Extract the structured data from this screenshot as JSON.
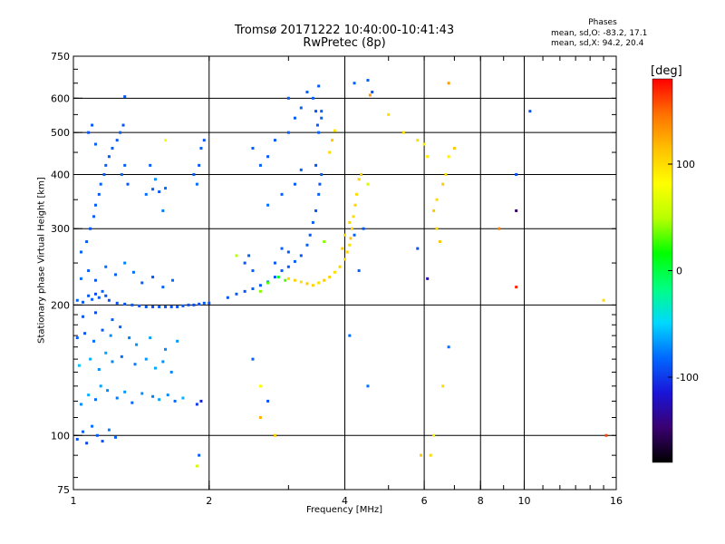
{
  "chart_data": {
    "type": "scatter",
    "title": "Tromsø 20171222 10:40:00-10:41:43",
    "subtitle": "RwPretec (8p)",
    "xlabel": "Frequency [MHz]",
    "ylabel": "Stationary phase Virtual Height [km]",
    "x_scale": "log",
    "y_scale": "log",
    "xlim": [
      1,
      16
    ],
    "ylim": [
      75,
      750
    ],
    "x_ticks": [
      1,
      2,
      4,
      6,
      8,
      10,
      16
    ],
    "y_ticks": [
      75,
      100,
      200,
      300,
      400,
      500,
      600,
      750
    ],
    "x_grid": [
      2,
      4,
      6,
      8,
      10
    ],
    "y_grid": [
      100,
      200,
      300,
      400,
      500,
      600
    ],
    "legend": {
      "title": "Phases",
      "lines": [
        "mean, sd,O: -83.2, 17.1",
        "mean, sd,X: 94.2, 20.4"
      ]
    },
    "colorbar": {
      "label": "[deg]",
      "range": [
        -180,
        180
      ],
      "ticks": [
        -100,
        0,
        100
      ],
      "colors": [
        "#000000",
        "#3a0070",
        "#1a14d8",
        "#0068ff",
        "#00d8ff",
        "#00ff80",
        "#00ff00",
        "#b8ff00",
        "#ffff00",
        "#ffc000",
        "#ff7000",
        "#ff0000"
      ]
    },
    "series": [
      {
        "points": [
          [
            1.02,
            98,
            -90
          ],
          [
            1.05,
            102,
            -85
          ],
          [
            1.07,
            96,
            -95
          ],
          [
            1.1,
            105,
            -80
          ],
          [
            1.13,
            100,
            -88
          ],
          [
            1.16,
            97,
            -92
          ],
          [
            1.2,
            103,
            -75
          ],
          [
            1.24,
            99,
            -85
          ],
          [
            1.04,
            118,
            -70
          ],
          [
            1.08,
            124,
            -60
          ],
          [
            1.12,
            121,
            -80
          ],
          [
            1.15,
            130,
            -65
          ],
          [
            1.19,
            127,
            -72
          ],
          [
            1.25,
            122,
            -78
          ],
          [
            1.3,
            126,
            -68
          ],
          [
            1.35,
            119,
            -82
          ],
          [
            1.42,
            125,
            -70
          ],
          [
            1.5,
            123,
            -75
          ],
          [
            1.55,
            121,
            -65
          ],
          [
            1.62,
            124,
            -72
          ],
          [
            1.68,
            120,
            -80
          ],
          [
            1.75,
            122,
            -60
          ],
          [
            1.03,
            145,
            -55
          ],
          [
            1.09,
            150,
            -60
          ],
          [
            1.14,
            142,
            -70
          ],
          [
            1.18,
            155,
            -65
          ],
          [
            1.22,
            148,
            -72
          ],
          [
            1.28,
            152,
            -80
          ],
          [
            1.37,
            146,
            -75
          ],
          [
            1.45,
            150,
            -68
          ],
          [
            1.52,
            143,
            -62
          ],
          [
            1.58,
            148,
            -70
          ],
          [
            1.65,
            140,
            -74
          ],
          [
            1.02,
            168,
            -85
          ],
          [
            1.06,
            172,
            -90
          ],
          [
            1.11,
            165,
            -80
          ],
          [
            1.16,
            175,
            -88
          ],
          [
            1.21,
            170,
            -70
          ],
          [
            1.27,
            178,
            -82
          ],
          [
            1.33,
            168,
            -75
          ],
          [
            1.05,
            188,
            -90
          ],
          [
            1.12,
            192,
            -95
          ],
          [
            1.22,
            185,
            -85
          ],
          [
            1.38,
            162,
            -70
          ],
          [
            1.48,
            168,
            -65
          ],
          [
            1.6,
            158,
            -72
          ],
          [
            1.7,
            165,
            -68
          ],
          [
            1.02,
            205,
            -85
          ],
          [
            1.05,
            203,
            -88
          ],
          [
            1.08,
            210,
            -90
          ],
          [
            1.1,
            206,
            -85
          ],
          [
            1.12,
            212,
            -92
          ],
          [
            1.14,
            208,
            -88
          ],
          [
            1.16,
            215,
            -85
          ],
          [
            1.18,
            210,
            -90
          ],
          [
            1.2,
            205,
            -90
          ],
          [
            1.25,
            202,
            -92
          ],
          [
            1.3,
            201,
            -90
          ],
          [
            1.35,
            200,
            -88
          ],
          [
            1.4,
            199,
            -90
          ],
          [
            1.45,
            198,
            -90
          ],
          [
            1.5,
            198,
            -92
          ],
          [
            1.55,
            198,
            -90
          ],
          [
            1.6,
            198,
            -88
          ],
          [
            1.65,
            198,
            -90
          ],
          [
            1.7,
            198,
            -90
          ],
          [
            1.75,
            199,
            -88
          ],
          [
            1.8,
            200,
            -90
          ],
          [
            1.85,
            200,
            -92
          ],
          [
            1.9,
            201,
            -90
          ],
          [
            1.95,
            202,
            -88
          ],
          [
            2.0,
            202,
            -90
          ],
          [
            1.04,
            230,
            -80
          ],
          [
            1.08,
            240,
            -85
          ],
          [
            1.12,
            228,
            -90
          ],
          [
            1.18,
            245,
            -80
          ],
          [
            1.24,
            235,
            -85
          ],
          [
            1.3,
            250,
            -75
          ],
          [
            1.36,
            238,
            -80
          ],
          [
            1.42,
            225,
            -85
          ],
          [
            1.5,
            232,
            -88
          ],
          [
            1.58,
            220,
            -82
          ],
          [
            1.66,
            228,
            -80
          ],
          [
            1.04,
            265,
            -85
          ],
          [
            1.07,
            280,
            -88
          ],
          [
            1.09,
            300,
            -90
          ],
          [
            1.11,
            320,
            -86
          ],
          [
            1.12,
            340,
            -85
          ],
          [
            1.14,
            360,
            -88
          ],
          [
            1.15,
            380,
            -84
          ],
          [
            1.17,
            400,
            -86
          ],
          [
            1.18,
            420,
            -85
          ],
          [
            1.2,
            440,
            -88
          ],
          [
            1.22,
            460,
            -85
          ],
          [
            1.25,
            480,
            -88
          ],
          [
            1.08,
            500,
            -90
          ],
          [
            1.1,
            520,
            -88
          ],
          [
            1.12,
            470,
            -85
          ],
          [
            1.28,
            400,
            -80
          ],
          [
            1.3,
            420,
            -85
          ],
          [
            1.32,
            380,
            -88
          ],
          [
            1.27,
            500,
            -85
          ],
          [
            1.29,
            520,
            -90
          ],
          [
            1.3,
            605,
            -90
          ],
          [
            1.45,
            360,
            -80
          ],
          [
            1.5,
            370,
            -85
          ],
          [
            1.55,
            365,
            -88
          ],
          [
            1.6,
            372,
            -80
          ],
          [
            1.48,
            420,
            -85
          ],
          [
            1.52,
            390,
            -70
          ],
          [
            1.58,
            330,
            -75
          ],
          [
            1.85,
            400,
            -85
          ],
          [
            1.9,
            420,
            -88
          ],
          [
            1.92,
            460,
            -85
          ],
          [
            1.95,
            480,
            -88
          ],
          [
            1.88,
            380,
            -80
          ],
          [
            1.9,
            90,
            -85
          ],
          [
            1.88,
            85,
            60
          ],
          [
            1.6,
            480,
            80
          ],
          [
            1.92,
            120,
            -110
          ],
          [
            1.88,
            118,
            -100
          ],
          [
            2.2,
            208,
            -90
          ],
          [
            2.3,
            212,
            -88
          ],
          [
            2.4,
            215,
            -90
          ],
          [
            2.5,
            218,
            -85
          ],
          [
            2.6,
            222,
            -88
          ],
          [
            2.7,
            226,
            -85
          ],
          [
            2.8,
            232,
            -88
          ],
          [
            2.9,
            240,
            -85
          ],
          [
            3.0,
            245,
            -88
          ],
          [
            3.1,
            252,
            -85
          ],
          [
            3.2,
            260,
            -88
          ],
          [
            3.3,
            275,
            -85
          ],
          [
            3.35,
            290,
            -88
          ],
          [
            3.4,
            310,
            -85
          ],
          [
            3.45,
            330,
            -88
          ],
          [
            3.5,
            360,
            -85
          ],
          [
            3.52,
            380,
            -88
          ],
          [
            3.55,
            400,
            -85
          ],
          [
            3.45,
            420,
            -88
          ],
          [
            3.5,
            500,
            -85
          ],
          [
            3.48,
            520,
            -88
          ],
          [
            3.55,
            560,
            -85
          ],
          [
            3.5,
            640,
            -88
          ],
          [
            3.4,
            600,
            -85
          ],
          [
            3.45,
            560,
            -90
          ],
          [
            3.55,
            540,
            -85
          ],
          [
            2.4,
            250,
            -90
          ],
          [
            2.5,
            240,
            -85
          ],
          [
            2.3,
            260,
            50
          ],
          [
            2.6,
            215,
            40
          ],
          [
            2.7,
            225,
            30
          ],
          [
            2.45,
            260,
            -85
          ],
          [
            2.8,
            250,
            -90
          ],
          [
            2.9,
            270,
            -85
          ],
          [
            3.0,
            265,
            -88
          ],
          [
            2.6,
            420,
            -85
          ],
          [
            2.7,
            440,
            -88
          ],
          [
            2.5,
            460,
            -85
          ],
          [
            2.8,
            480,
            -88
          ],
          [
            3.0,
            500,
            -85
          ],
          [
            3.1,
            540,
            -88
          ],
          [
            3.2,
            570,
            -85
          ],
          [
            3.0,
            600,
            -88
          ],
          [
            3.3,
            620,
            -85
          ],
          [
            2.7,
            340,
            -80
          ],
          [
            2.9,
            360,
            -85
          ],
          [
            3.1,
            380,
            -88
          ],
          [
            3.2,
            410,
            -85
          ],
          [
            3.7,
            450,
            100
          ],
          [
            3.75,
            480,
            110
          ],
          [
            3.8,
            505,
            95
          ],
          [
            4.2,
            290,
            -85
          ],
          [
            4.4,
            300,
            -88
          ],
          [
            4.1,
            170,
            -80
          ],
          [
            2.5,
            150,
            -85
          ],
          [
            2.6,
            130,
            80
          ],
          [
            2.7,
            120,
            -90
          ],
          [
            2.6,
            110,
            120
          ],
          [
            2.8,
            100,
            110
          ],
          [
            4.5,
            130,
            -80
          ],
          [
            4.3,
            240,
            -85
          ],
          [
            3.0,
            230,
            100
          ],
          [
            3.1,
            228,
            105
          ],
          [
            3.2,
            226,
            100
          ],
          [
            3.3,
            224,
            110
          ],
          [
            3.4,
            222,
            105
          ],
          [
            3.5,
            225,
            100
          ],
          [
            3.6,
            228,
            110
          ],
          [
            3.7,
            232,
            105
          ],
          [
            3.8,
            238,
            100
          ],
          [
            3.9,
            245,
            105
          ],
          [
            4.0,
            255,
            100
          ],
          [
            4.05,
            265,
            105
          ],
          [
            4.1,
            275,
            100
          ],
          [
            4.12,
            285,
            110
          ],
          [
            4.15,
            300,
            105
          ],
          [
            4.18,
            320,
            100
          ],
          [
            4.22,
            340,
            105
          ],
          [
            4.25,
            360,
            100
          ],
          [
            4.3,
            390,
            105
          ],
          [
            3.95,
            270,
            110
          ],
          [
            4.0,
            290,
            100
          ],
          [
            4.1,
            310,
            105
          ],
          [
            4.35,
            400,
            110
          ],
          [
            2.95,
            228,
            30
          ],
          [
            2.85,
            232,
            10
          ],
          [
            3.6,
            280,
            40
          ],
          [
            4.5,
            380,
            60
          ],
          [
            5.4,
            500,
            100
          ],
          [
            5.8,
            480,
            100
          ],
          [
            6.0,
            470,
            90
          ],
          [
            6.1,
            440,
            90
          ],
          [
            6.3,
            330,
            110
          ],
          [
            6.4,
            350,
            100
          ],
          [
            6.6,
            380,
            110
          ],
          [
            6.7,
            400,
            100
          ],
          [
            6.8,
            440,
            90
          ],
          [
            6.4,
            300,
            100
          ],
          [
            6.5,
            280,
            110
          ],
          [
            6.8,
            160,
            -80
          ],
          [
            6.6,
            130,
            100
          ],
          [
            6.3,
            100,
            90
          ],
          [
            6.2,
            90,
            100
          ],
          [
            5.9,
            90,
            110
          ],
          [
            6.1,
            230,
            -130
          ],
          [
            5.8,
            270,
            -90
          ],
          [
            6.8,
            650,
            130
          ],
          [
            7.0,
            460,
            110
          ],
          [
            8.8,
            300,
            140
          ],
          [
            9.6,
            400,
            -90
          ],
          [
            9.6,
            330,
            -150
          ],
          [
            10.3,
            560,
            -90
          ],
          [
            9.6,
            220,
            170
          ],
          [
            15.0,
            205,
            100
          ],
          [
            15.2,
            100,
            160
          ],
          [
            4.5,
            660,
            -85
          ],
          [
            4.55,
            610,
            130
          ],
          [
            4.6,
            620,
            -90
          ],
          [
            5.0,
            550,
            100
          ],
          [
            4.2,
            650,
            -85
          ]
        ]
      }
    ]
  }
}
